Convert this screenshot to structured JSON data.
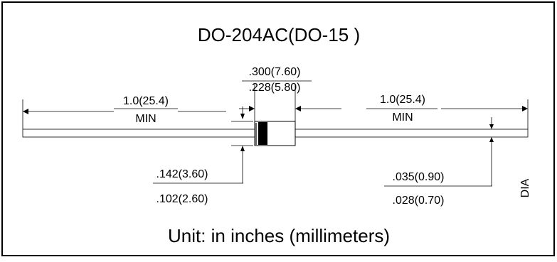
{
  "title": "DO-204AC(DO-15 )",
  "footer": "Unit: in inches (millimeters)",
  "dimensions": {
    "body_length": {
      "max": ".300(7.60)",
      "min": ".228(5.80)"
    },
    "lead_length_left": {
      "value": "1.0(25.4)",
      "qualifier": "MIN"
    },
    "lead_length_right": {
      "value": "1.0(25.4)",
      "qualifier": "MIN"
    },
    "body_diameter": {
      "max": ".142(3.60)",
      "min": ".102(2.60)"
    },
    "lead_diameter": {
      "max": ".035(0.90)",
      "min": ".028(0.70)",
      "suffix": "DIA"
    }
  }
}
